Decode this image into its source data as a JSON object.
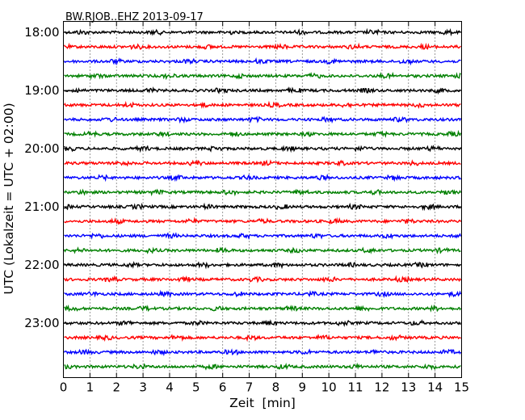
{
  "chart_data": {
    "type": "line",
    "title": "BW.RJOB..EHZ 2013-09-17",
    "xlabel": "Zeit  [min]",
    "ylabel": "UTC (Lokalzeit = UTC + 02:00)",
    "xlim": [
      0,
      15
    ],
    "x_ticks": [
      0,
      1,
      2,
      3,
      4,
      5,
      6,
      7,
      8,
      9,
      10,
      11,
      12,
      13,
      14,
      15
    ],
    "y_ticks": [
      "18:00",
      "19:00",
      "20:00",
      "21:00",
      "22:00",
      "23:00"
    ],
    "grid": "vertical dotted lines at every minute",
    "trace_colors": [
      "#000000",
      "#ff0000",
      "#0000ff",
      "#008000"
    ],
    "trace_start_times": [
      "18:00",
      "18:15",
      "18:30",
      "18:45",
      "19:00",
      "19:15",
      "19:30",
      "19:45",
      "20:00",
      "20:15",
      "20:30",
      "20:45",
      "21:00",
      "21:15",
      "21:30",
      "21:45",
      "22:00",
      "22:15",
      "22:30",
      "22:45",
      "23:00",
      "23:15",
      "23:30",
      "23:45"
    ],
    "trace_duration_min": 15
  }
}
